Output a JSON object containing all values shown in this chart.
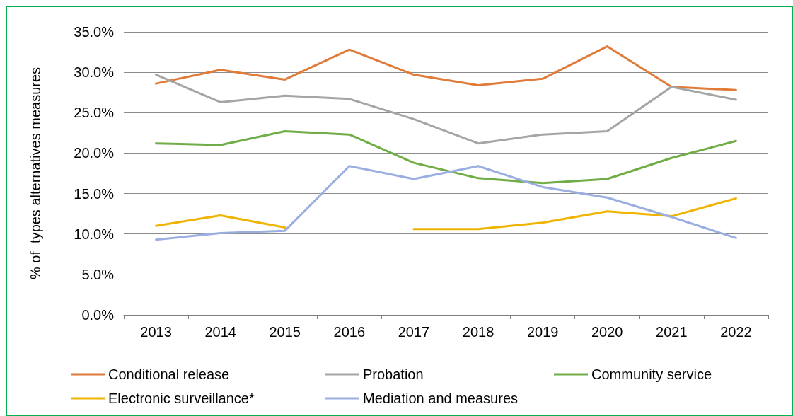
{
  "chart_data": {
    "type": "line",
    "ylabel": "% of  types alternatives measures",
    "categories": [
      "2013",
      "2014",
      "2015",
      "2016",
      "2017",
      "2018",
      "2019",
      "2020",
      "2021",
      "2022"
    ],
    "series": [
      {
        "name": "Conditional release",
        "color": "#e07b39",
        "values": [
          28.6,
          30.3,
          29.1,
          32.8,
          29.7,
          28.4,
          29.2,
          33.2,
          28.2,
          27.8
        ]
      },
      {
        "name": "Probation",
        "color": "#a5a5a5",
        "values": [
          29.7,
          26.3,
          27.1,
          26.7,
          24.2,
          21.2,
          22.3,
          22.7,
          28.2,
          26.6
        ]
      },
      {
        "name": "Community service",
        "color": "#70ad47",
        "values": [
          21.2,
          21.0,
          22.7,
          22.3,
          18.8,
          16.9,
          16.3,
          16.8,
          19.4,
          21.5
        ]
      },
      {
        "name": "Electronic surveillance*",
        "color": "#f0b400",
        "values": [
          11.0,
          12.3,
          10.8,
          null,
          10.6,
          10.6,
          11.4,
          12.8,
          12.2,
          14.4
        ]
      },
      {
        "name": "Mediation and measures",
        "color": "#9aaee0",
        "values": [
          9.3,
          10.1,
          10.4,
          18.4,
          16.8,
          18.4,
          15.8,
          14.5,
          12.1,
          9.5
        ]
      }
    ],
    "ylim": [
      0,
      35
    ],
    "yticks": [
      {
        "value": 0,
        "label": "0.0%"
      },
      {
        "value": 5,
        "label": "5.0%"
      },
      {
        "value": 10,
        "label": "10.0%"
      },
      {
        "value": 15,
        "label": "15.0%"
      },
      {
        "value": 20,
        "label": "20.0%"
      },
      {
        "value": 25,
        "label": "25.0%"
      },
      {
        "value": 30,
        "label": "30.0%"
      },
      {
        "value": 35,
        "label": "35.0%"
      }
    ],
    "grid": "y",
    "legend": "bottom",
    "marker": "none",
    "line_style": "solid"
  }
}
